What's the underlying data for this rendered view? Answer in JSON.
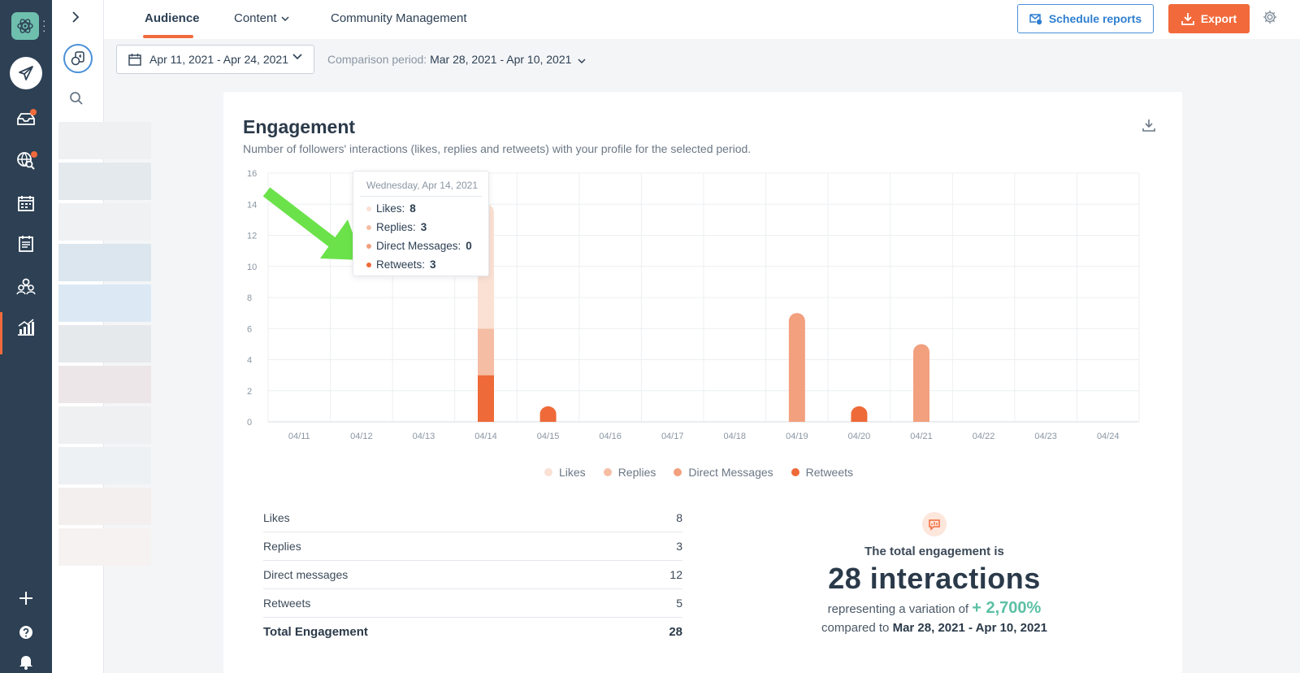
{
  "tabs": {
    "audience": "Audience",
    "content": "Content",
    "community": "Community Management"
  },
  "actions": {
    "schedule": "Schedule reports",
    "export": "Export"
  },
  "dates": {
    "range": "Apr 11, 2021 - Apr 24, 2021",
    "comparison_label": "Comparison period:",
    "comparison_value": "Mar 28, 2021 - Apr 10, 2021"
  },
  "card": {
    "title": "Engagement",
    "subtitle": "Number of followers' interactions (likes, replies and retweets) with your profile for the selected period."
  },
  "tooltip": {
    "date": "Wednesday, Apr 14, 2021",
    "rows": [
      {
        "label": "Likes:",
        "value": "8",
        "color": "#fbe1d4"
      },
      {
        "label": "Replies:",
        "value": "3",
        "color": "#f5bda3"
      },
      {
        "label": "Direct Messages:",
        "value": "0",
        "color": "#f2a07e"
      },
      {
        "label": "Retweets:",
        "value": "3",
        "color": "#ee6a39"
      }
    ]
  },
  "chart_data": {
    "type": "bar",
    "stacked": true,
    "categories": [
      "04/11",
      "04/12",
      "04/13",
      "04/14",
      "04/15",
      "04/16",
      "04/17",
      "04/18",
      "04/19",
      "04/20",
      "04/21",
      "04/22",
      "04/23",
      "04/24"
    ],
    "series": [
      {
        "name": "Likes",
        "color": "#fbe1d4",
        "values": [
          0,
          0,
          0,
          8,
          0,
          0,
          0,
          0,
          0,
          0,
          0,
          0,
          0,
          0
        ]
      },
      {
        "name": "Replies",
        "color": "#f5bda3",
        "values": [
          0,
          0,
          0,
          3,
          0,
          0,
          0,
          0,
          0,
          0,
          0,
          0,
          0,
          0
        ]
      },
      {
        "name": "Direct Messages",
        "color": "#f2a07e",
        "values": [
          0,
          0,
          0,
          0,
          0,
          0,
          0,
          0,
          7,
          0,
          5,
          0,
          0,
          0
        ]
      },
      {
        "name": "Retweets",
        "color": "#ee6a39",
        "values": [
          0,
          0,
          0,
          3,
          1,
          0,
          0,
          0,
          0,
          1,
          0,
          0,
          0,
          0
        ]
      }
    ],
    "yticks": [
      0,
      2,
      4,
      6,
      8,
      10,
      12,
      14,
      16
    ],
    "ylim": [
      0,
      16
    ],
    "grid": true,
    "legend": "bottom"
  },
  "stats": {
    "rows": [
      {
        "label": "Likes",
        "value": "8"
      },
      {
        "label": "Replies",
        "value": "3"
      },
      {
        "label": "Direct messages",
        "value": "12"
      },
      {
        "label": "Retweets",
        "value": "5"
      }
    ],
    "total_label": "Total Engagement",
    "total_value": "28"
  },
  "summary": {
    "lead": "The total engagement is",
    "big": "28 interactions",
    "variation_prefix": "representing a variation of",
    "variation_value": "+ 2,700%",
    "compared_prefix": "compared to",
    "compared_value": "Mar 28, 2021 - Apr 10, 2021"
  },
  "icons": {
    "logo": "atom-logo-icon",
    "publish": "paper-plane-icon",
    "inbox": "inbox-icon",
    "listen": "globe-search-icon",
    "calendar": "calendar-icon",
    "reports": "checklist-icon",
    "audience": "people-icon",
    "analytics": "bar-chart-icon",
    "add": "plus-icon",
    "help": "help-icon",
    "notifications": "bell-icon"
  }
}
